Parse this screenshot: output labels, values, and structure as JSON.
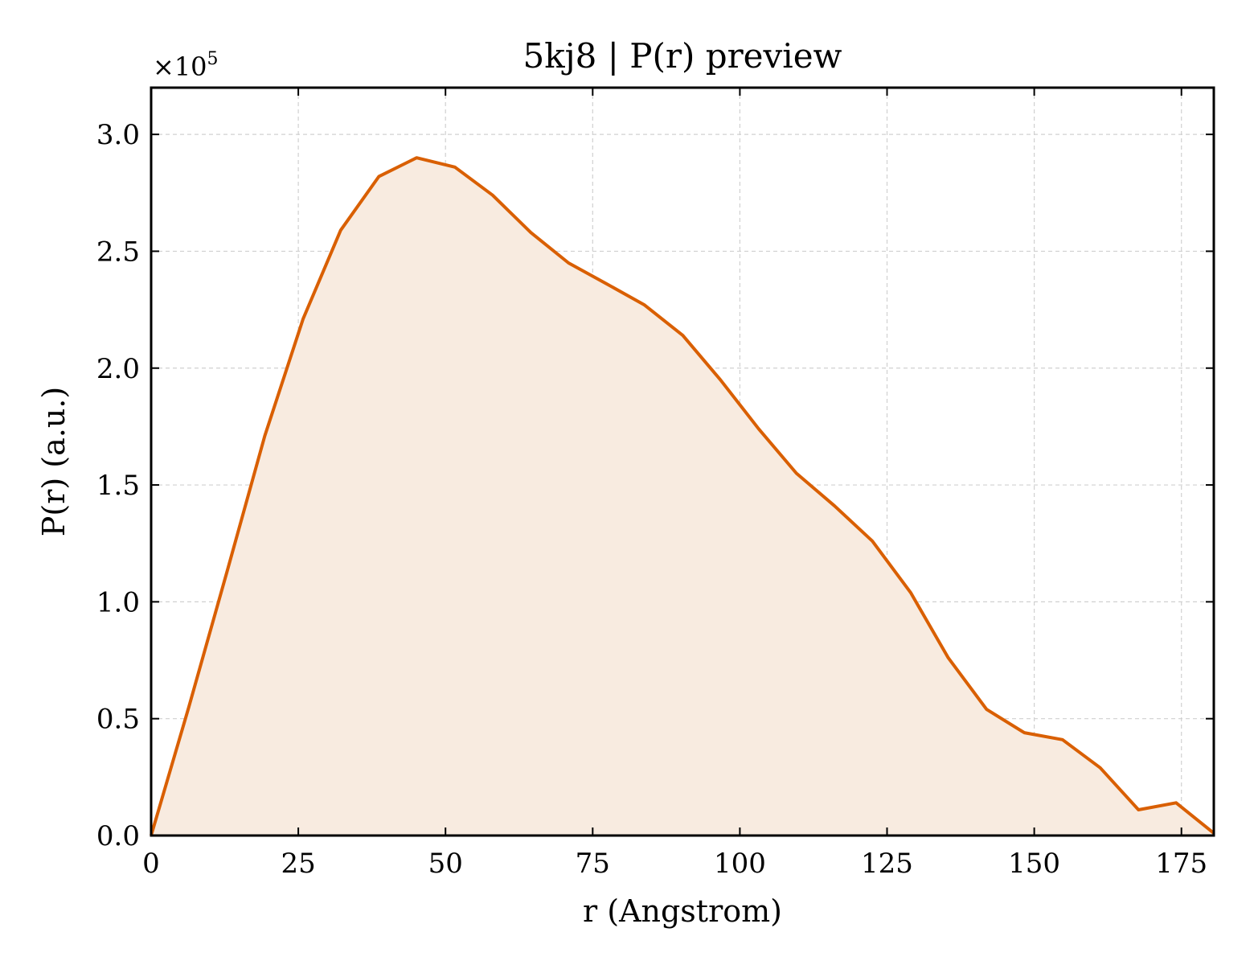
{
  "chart_data": {
    "type": "area",
    "title": "5kj8 | P(r) preview",
    "xlabel": "r (Angstrom)",
    "ylabel": "P(r) (a.u.)",
    "y_multiplier": "×10",
    "y_multiplier_exponent": "5",
    "xlim": [
      0,
      180.5
    ],
    "ylim": [
      0,
      3.2
    ],
    "x_ticks": [
      0,
      25,
      50,
      75,
      100,
      125,
      150,
      175
    ],
    "y_ticks": [
      0.0,
      0.5,
      1.0,
      1.5,
      2.0,
      2.5,
      3.0
    ],
    "y_tick_labels": [
      "0.0",
      "0.5",
      "1.0",
      "1.5",
      "2.0",
      "2.5",
      "3.0"
    ],
    "grid": true,
    "line_color": "#d95f02",
    "fill_color": "#f8ebe0",
    "series": [
      {
        "x": [
          0,
          6.4,
          12.9,
          19.3,
          25.8,
          32.2,
          38.7,
          45.1,
          51.6,
          58.0,
          64.5,
          70.9,
          77.4,
          83.8,
          90.3,
          96.7,
          103.2,
          109.6,
          116.1,
          122.5,
          129.0,
          135.4,
          141.9,
          148.3,
          154.8,
          161.2,
          167.7,
          174.1,
          180.5
        ],
        "y": [
          0.0,
          0.55,
          1.13,
          1.71,
          2.21,
          2.59,
          2.82,
          2.9,
          2.86,
          2.74,
          2.58,
          2.45,
          2.36,
          2.27,
          2.14,
          1.95,
          1.74,
          1.55,
          1.41,
          1.26,
          1.04,
          0.76,
          0.54,
          0.44,
          0.41,
          0.29,
          0.11,
          0.14,
          0.01
        ]
      }
    ]
  }
}
